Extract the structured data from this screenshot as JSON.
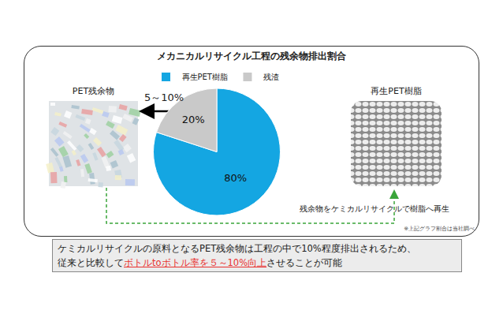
{
  "chart_data": {
    "type": "pie",
    "title": "メカニカルリサイクル工程の残余物排出割合",
    "categories": [
      "再生PET樹脂",
      "残渣"
    ],
    "values": [
      80,
      20
    ],
    "value_labels": [
      "80%",
      "20%"
    ],
    "colors": [
      "#14a6e2",
      "#c9c9c9"
    ],
    "legend": "top",
    "data_labels": true
  },
  "callout": "5～10%",
  "left_image": {
    "label": "PET残余物"
  },
  "right_image": {
    "label": "再生PET樹脂"
  },
  "flow_label": "残余物をケミカルリサイクルで樹脂へ再生",
  "note": "※上記グラフ割合は当社調べ",
  "summary": {
    "line1": "ケミカルリサイクルの原料となるPET残余物は工程の中で10%程度排出されるため、",
    "line2_before": "従来と比較して",
    "line2_highlight": "ボトルtoボトル率を５～10%向上",
    "line2_after": "させることが可能"
  }
}
